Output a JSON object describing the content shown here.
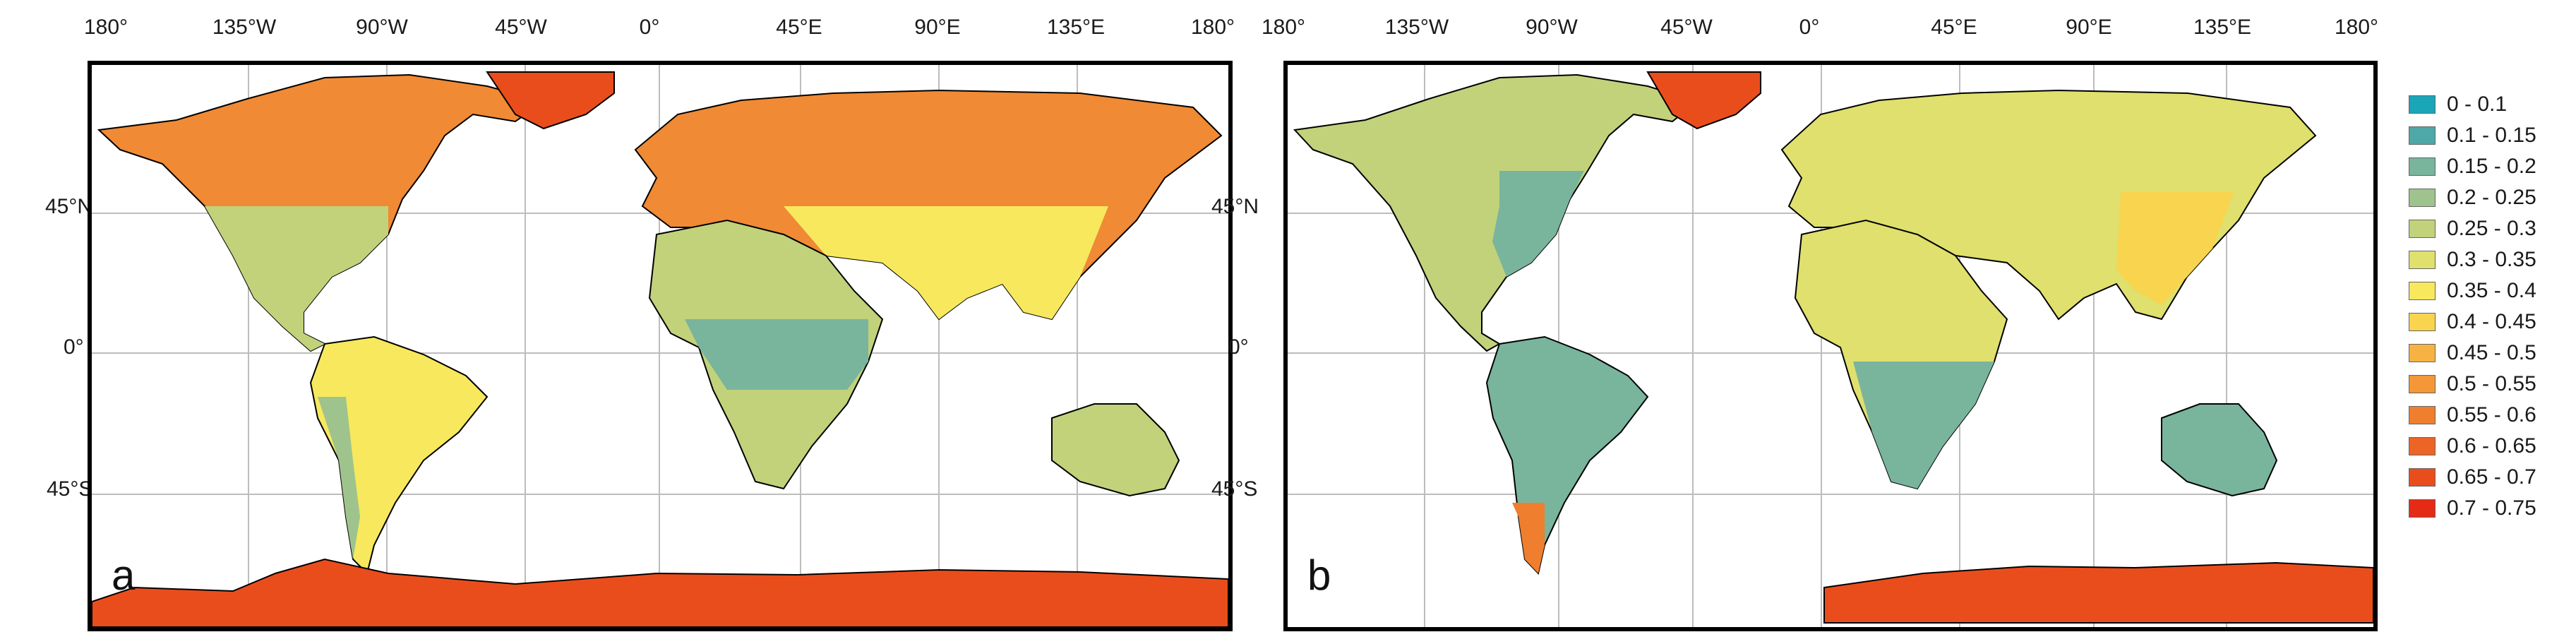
{
  "top_ticks": [
    "180°",
    "135°W",
    "90°W",
    "45°W",
    "0°",
    "45°E",
    "90°E",
    "135°E",
    "180°"
  ],
  "left_ticks": [
    "45°N",
    "0°",
    "45°S"
  ],
  "panels": [
    {
      "letter": "a"
    },
    {
      "letter": "b"
    }
  ],
  "legend": [
    {
      "label": "0 - 0.1",
      "color": "#1aa5b8"
    },
    {
      "label": "0.1 - 0.15",
      "color": "#4ea8a8"
    },
    {
      "label": "0.15 - 0.2",
      "color": "#79b49d"
    },
    {
      "label": "0.2 - 0.25",
      "color": "#9fc38c"
    },
    {
      "label": "0.25 - 0.3",
      "color": "#c1d27b"
    },
    {
      "label": "0.3 - 0.35",
      "color": "#dfe06d"
    },
    {
      "label": "0.35 - 0.4",
      "color": "#f7e85e"
    },
    {
      "label": "0.4 - 0.45",
      "color": "#f8d44f"
    },
    {
      "label": "0.45 - 0.5",
      "color": "#f6b343"
    },
    {
      "label": "0.5 - 0.55",
      "color": "#f39738"
    },
    {
      "label": "0.55 - 0.6",
      "color": "#ef7e2f"
    },
    {
      "label": "0.6 - 0.65",
      "color": "#ec6526"
    },
    {
      "label": "0.65 - 0.7",
      "color": "#ea4d1c"
    },
    {
      "label": "0.7 - 0.75",
      "color": "#e52a16"
    }
  ]
}
